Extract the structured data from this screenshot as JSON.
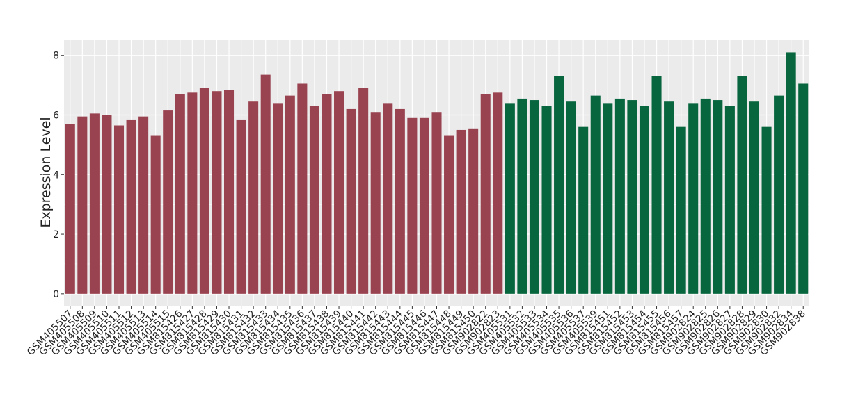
{
  "chart_data": {
    "type": "bar",
    "y_label": "Expression Level",
    "categories": [
      "GSM405507",
      "GSM405508",
      "GSM405509",
      "GSM405510",
      "GSM405511",
      "GSM405512",
      "GSM405513",
      "GSM405514",
      "GSM405515",
      "GSM815426",
      "GSM815427",
      "GSM815428",
      "GSM815429",
      "GSM815430",
      "GSM815431",
      "GSM815432",
      "GSM815433",
      "GSM815434",
      "GSM815435",
      "GSM815436",
      "GSM815437",
      "GSM815438",
      "GSM815439",
      "GSM815440",
      "GSM815441",
      "GSM815442",
      "GSM815443",
      "GSM815444",
      "GSM815445",
      "GSM815446",
      "GSM815447",
      "GSM815448",
      "GSM815449",
      "GSM815450",
      "GSM902822",
      "GSM902823",
      "GSM405531",
      "GSM405532",
      "GSM405533",
      "GSM405534",
      "GSM405535",
      "GSM405536",
      "GSM405537",
      "GSM405539",
      "GSM815451",
      "GSM815452",
      "GSM815453",
      "GSM815454",
      "GSM815455",
      "GSM815456",
      "GSM815457",
      "GSM902824",
      "GSM902825",
      "GSM902826",
      "GSM902827",
      "GSM902828",
      "GSM902829",
      "GSM902830",
      "GSM902832",
      "GSM902834",
      "GSM902838"
    ],
    "values": [
      5.7,
      5.95,
      6.05,
      6.0,
      5.65,
      5.85,
      5.95,
      5.3,
      6.15,
      6.7,
      6.75,
      6.9,
      6.8,
      6.85,
      5.85,
      6.45,
      7.35,
      6.4,
      6.65,
      7.05,
      6.3,
      6.7,
      6.8,
      6.2,
      6.9,
      6.1,
      6.4,
      6.2,
      5.9,
      5.9,
      6.1,
      5.3,
      5.5,
      5.55,
      6.7,
      6.75,
      6.4,
      6.55,
      6.5,
      6.3,
      7.3,
      6.45,
      5.6,
      6.65,
      6.4,
      6.55,
      6.5,
      6.3,
      7.3,
      6.45,
      5.6,
      6.4,
      6.55,
      6.5,
      6.3,
      7.3,
      6.45,
      5.6,
      6.65,
      8.1,
      7.05
    ],
    "colors": [
      "#9a4350",
      "#9a4350",
      "#9a4350",
      "#9a4350",
      "#9a4350",
      "#9a4350",
      "#9a4350",
      "#9a4350",
      "#9a4350",
      "#9a4350",
      "#9a4350",
      "#9a4350",
      "#9a4350",
      "#9a4350",
      "#9a4350",
      "#9a4350",
      "#9a4350",
      "#9a4350",
      "#9a4350",
      "#9a4350",
      "#9a4350",
      "#9a4350",
      "#9a4350",
      "#9a4350",
      "#9a4350",
      "#9a4350",
      "#9a4350",
      "#9a4350",
      "#9a4350",
      "#9a4350",
      "#9a4350",
      "#9a4350",
      "#9a4350",
      "#9a4350",
      "#9a4350",
      "#9a4350",
      "#08663f",
      "#08663f",
      "#08663f",
      "#08663f",
      "#08663f",
      "#08663f",
      "#08663f",
      "#08663f",
      "#08663f",
      "#08663f",
      "#08663f",
      "#08663f",
      "#08663f",
      "#08663f",
      "#08663f",
      "#08663f",
      "#08663f",
      "#08663f",
      "#08663f",
      "#08663f",
      "#08663f",
      "#08663f",
      "#08663f",
      "#08663f",
      "#08663f"
    ],
    "ylim": [
      -0.4,
      8.53
    ],
    "yticks": [
      0,
      2,
      4,
      6,
      8
    ],
    "grid": true
  }
}
